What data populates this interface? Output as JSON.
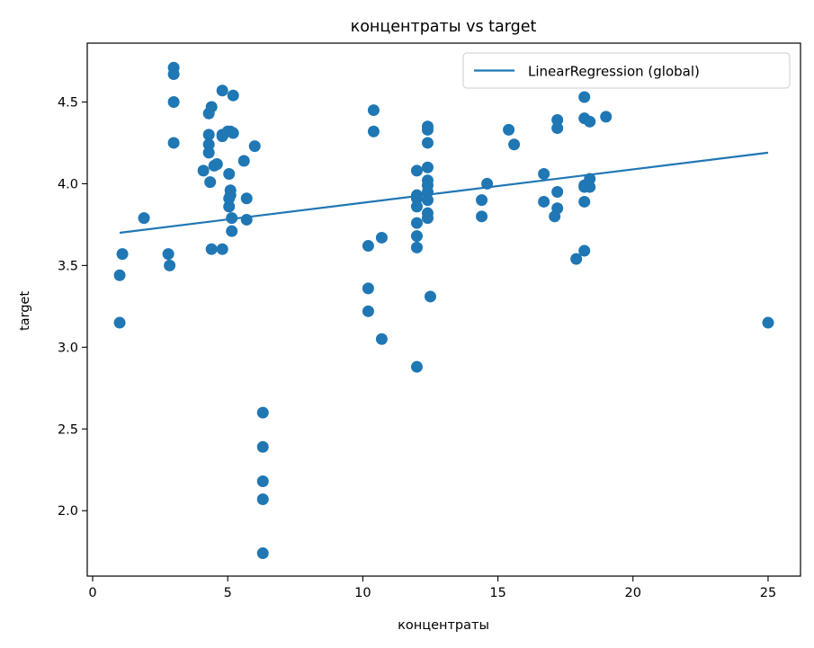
{
  "chart_data": {
    "type": "scatter",
    "title": "концентраты vs target",
    "xlabel": "концентраты",
    "ylabel": "target",
    "xlim": [
      -0.2,
      26.2
    ],
    "ylim": [
      1.6,
      4.86
    ],
    "xticks": [
      0,
      5,
      10,
      15,
      20,
      25
    ],
    "yticks": [
      2.0,
      2.5,
      3.0,
      3.5,
      4.0,
      4.5
    ],
    "grid": false,
    "legend_position": "top-right",
    "marker_color": "#1f77b4",
    "line_color": "#1f77b4",
    "series": [
      {
        "kind": "scatter",
        "points": [
          [
            1.0,
            3.44
          ],
          [
            1.0,
            3.15
          ],
          [
            1.1,
            3.57
          ],
          [
            1.9,
            3.79
          ],
          [
            2.8,
            3.57
          ],
          [
            2.85,
            3.5
          ],
          [
            3.0,
            4.71
          ],
          [
            3.0,
            4.67
          ],
          [
            3.0,
            4.5
          ],
          [
            3.0,
            4.25
          ],
          [
            4.1,
            4.08
          ],
          [
            4.3,
            4.43
          ],
          [
            4.4,
            4.47
          ],
          [
            4.3,
            4.3
          ],
          [
            4.3,
            4.24
          ],
          [
            4.3,
            4.19
          ],
          [
            4.35,
            4.01
          ],
          [
            4.4,
            3.6
          ],
          [
            4.5,
            4.11
          ],
          [
            4.6,
            4.12
          ],
          [
            4.6,
            4.12
          ],
          [
            4.8,
            4.57
          ],
          [
            4.8,
            4.3
          ],
          [
            4.8,
            4.29
          ],
          [
            4.8,
            3.6
          ],
          [
            5.0,
            4.32
          ],
          [
            5.1,
            4.32
          ],
          [
            5.2,
            4.54
          ],
          [
            5.2,
            4.31
          ],
          [
            5.05,
            4.06
          ],
          [
            5.1,
            3.96
          ],
          [
            5.1,
            3.93
          ],
          [
            5.05,
            3.91
          ],
          [
            5.05,
            3.86
          ],
          [
            5.15,
            3.79
          ],
          [
            5.15,
            3.71
          ],
          [
            5.6,
            4.14
          ],
          [
            5.7,
            3.91
          ],
          [
            5.7,
            3.78
          ],
          [
            6.0,
            4.23
          ],
          [
            6.3,
            2.6
          ],
          [
            6.3,
            2.39
          ],
          [
            6.3,
            2.18
          ],
          [
            6.3,
            2.07
          ],
          [
            6.3,
            1.74
          ],
          [
            10.2,
            3.62
          ],
          [
            10.2,
            3.36
          ],
          [
            10.2,
            3.22
          ],
          [
            10.4,
            4.45
          ],
          [
            10.4,
            4.32
          ],
          [
            10.7,
            3.67
          ],
          [
            10.7,
            3.05
          ],
          [
            12.0,
            4.08
          ],
          [
            12.0,
            3.93
          ],
          [
            12.0,
            3.91
          ],
          [
            12.0,
            3.86
          ],
          [
            12.0,
            3.76
          ],
          [
            12.0,
            3.68
          ],
          [
            12.0,
            3.61
          ],
          [
            12.0,
            2.88
          ],
          [
            12.4,
            4.35
          ],
          [
            12.4,
            4.33
          ],
          [
            12.4,
            4.25
          ],
          [
            12.4,
            4.1
          ],
          [
            12.4,
            4.02
          ],
          [
            12.4,
            3.99
          ],
          [
            12.4,
            3.95
          ],
          [
            12.4,
            3.9
          ],
          [
            12.4,
            3.82
          ],
          [
            12.4,
            3.79
          ],
          [
            12.5,
            3.31
          ],
          [
            14.4,
            3.9
          ],
          [
            14.4,
            3.8
          ],
          [
            14.6,
            4.0
          ],
          [
            15.4,
            4.33
          ],
          [
            15.6,
            4.24
          ],
          [
            16.7,
            4.06
          ],
          [
            16.7,
            3.89
          ],
          [
            17.1,
            3.8
          ],
          [
            17.2,
            4.39
          ],
          [
            17.2,
            4.34
          ],
          [
            17.2,
            3.95
          ],
          [
            17.2,
            3.85
          ],
          [
            17.9,
            3.54
          ],
          [
            18.2,
            4.53
          ],
          [
            18.2,
            4.4
          ],
          [
            18.4,
            4.38
          ],
          [
            18.2,
            3.99
          ],
          [
            18.2,
            3.98
          ],
          [
            18.2,
            3.89
          ],
          [
            18.2,
            3.59
          ],
          [
            18.4,
            4.03
          ],
          [
            18.4,
            3.98
          ],
          [
            19.0,
            4.41
          ],
          [
            25.0,
            3.15
          ]
        ]
      },
      {
        "kind": "line",
        "name": "LinearRegression (global)",
        "x": [
          1.0,
          25.0
        ],
        "y": [
          3.7,
          4.19
        ]
      }
    ]
  }
}
